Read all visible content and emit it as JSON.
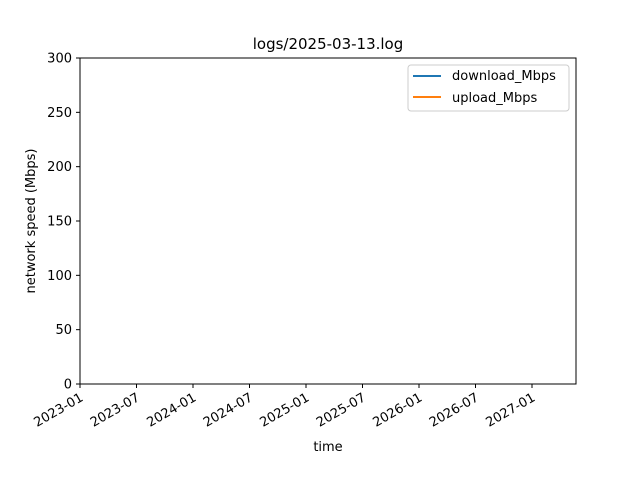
{
  "chart_data": {
    "type": "line",
    "title": "logs/2025-03-13.log",
    "xlabel": "time",
    "ylabel": "network speed (Mbps)",
    "x_ticks": [
      "2023-01",
      "2023-07",
      "2024-01",
      "2024-07",
      "2025-01",
      "2025-07",
      "2026-01",
      "2026-07",
      "2027-01"
    ],
    "y_ticks": [
      0,
      50,
      100,
      150,
      200,
      250,
      300
    ],
    "ylim": [
      0,
      300
    ],
    "grid": false,
    "legend_position": "top-right",
    "series": [
      {
        "name": "download_Mbps",
        "color": "#1f77b4",
        "x": [],
        "y": []
      },
      {
        "name": "upload_Mbps",
        "color": "#ff7f0e",
        "x": [],
        "y": []
      }
    ]
  }
}
